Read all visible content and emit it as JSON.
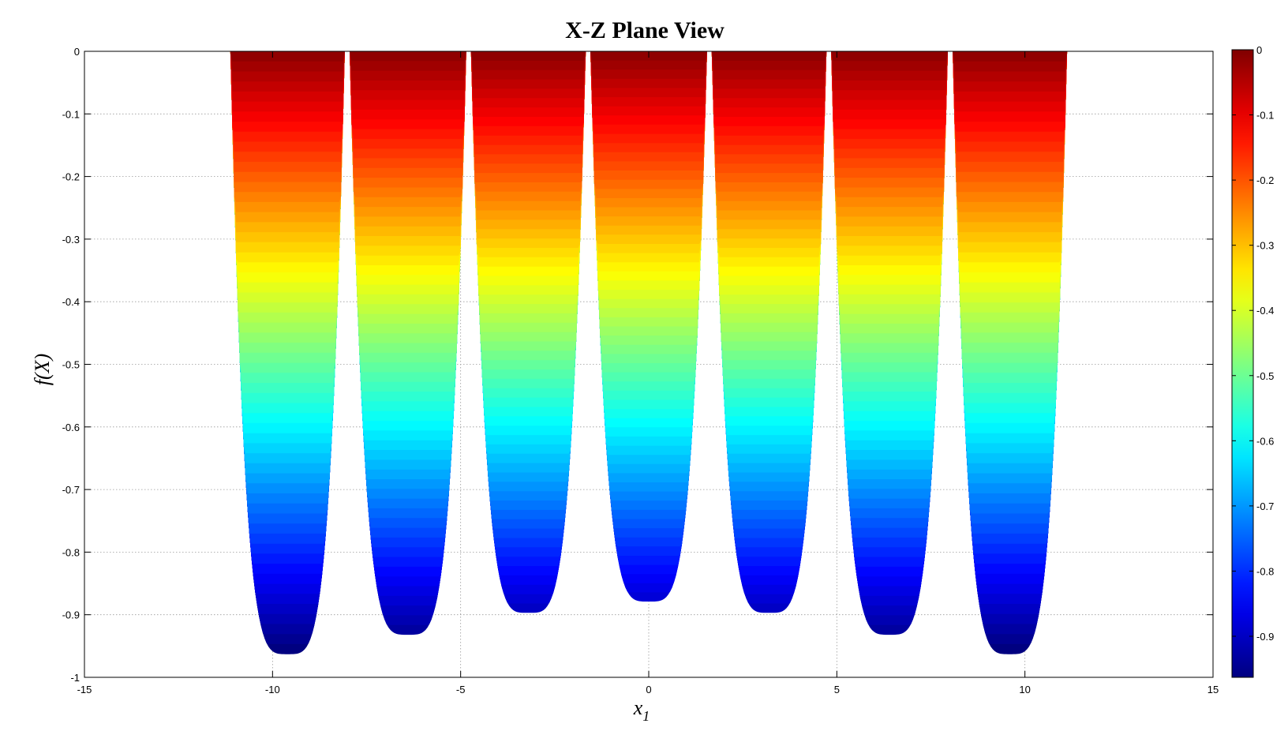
{
  "chart_data": {
    "type": "area",
    "title": "X-Z Plane View",
    "xlabel": "x",
    "xlabel_subscript": "1",
    "ylabel": "f(X)",
    "xlim": [
      -15,
      15
    ],
    "ylim": [
      -1,
      0
    ],
    "grid": true,
    "xticks": [
      -15,
      -10,
      -5,
      0,
      5,
      10,
      15
    ],
    "yticks": [
      0,
      -0.1,
      -0.2,
      -0.3,
      -0.4,
      -0.5,
      -0.6,
      -0.7,
      -0.8,
      -0.9,
      -1
    ],
    "xtick_labels": [
      "-15",
      "-10",
      "-5",
      "0",
      "5",
      "10",
      "15"
    ],
    "ytick_labels": [
      "0",
      "-0.1",
      "-0.2",
      "-0.3",
      "-0.4",
      "-0.5",
      "-0.6",
      "-0.7",
      "-0.8",
      "-0.9",
      "-1"
    ],
    "colormap": "jet",
    "colorbar": {
      "range": [
        -0.963,
        0
      ],
      "ticks": [
        0,
        -0.1,
        -0.2,
        -0.3,
        -0.4,
        -0.5,
        -0.6,
        -0.7,
        -0.8,
        -0.9
      ],
      "tick_labels": [
        "0",
        "-0.1",
        "-0.2",
        "-0.3",
        "-0.4",
        "-0.5",
        "-0.6",
        "-0.7",
        "-0.8",
        "-0.9"
      ]
    },
    "lobes": [
      {
        "x_min": -10.99,
        "x_max": -7.95,
        "x_center": -9.6,
        "min_value": -0.963
      },
      {
        "x_min": -7.85,
        "x_max": -4.75,
        "x_center": -6.4,
        "min_value": -0.932
      },
      {
        "x_min": -4.65,
        "x_max": -1.6,
        "x_center": -3.2,
        "min_value": -0.897
      },
      {
        "x_min": -1.55,
        "x_max": 1.55,
        "x_center": 0,
        "min_value": -0.879
      },
      {
        "x_min": 1.6,
        "x_max": 4.65,
        "x_center": 3.2,
        "min_value": -0.897
      },
      {
        "x_min": 4.75,
        "x_max": 7.85,
        "x_center": 6.4,
        "min_value": -0.932
      },
      {
        "x_min": 7.95,
        "x_max": 10.99,
        "x_center": 9.6,
        "min_value": -0.963
      }
    ]
  }
}
